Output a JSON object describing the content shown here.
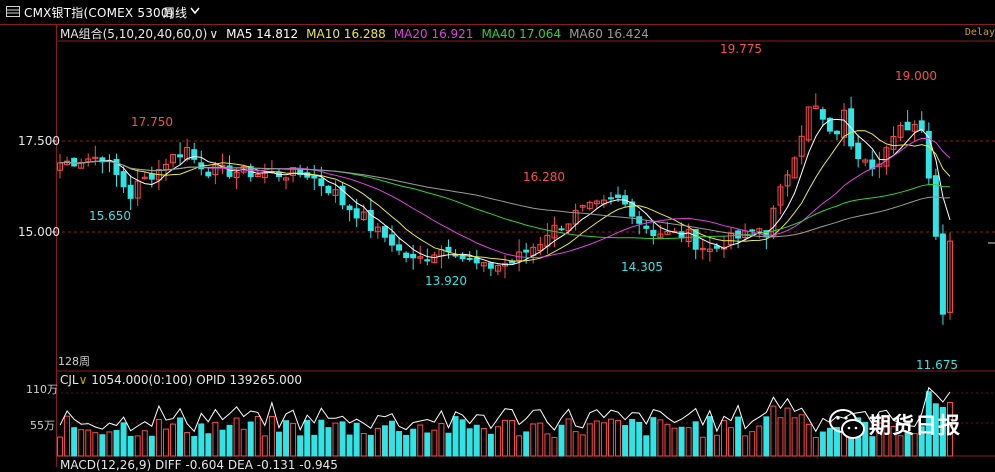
{
  "titlebar": {
    "instrument": "CMX银T指(COMEX 5300)",
    "period": "周线"
  },
  "indicators": {
    "ma_group_label": "MA组合(5,10,20,40,60,0)",
    "ma5": "MA5 14.812",
    "ma10": "MA10 16.288",
    "ma20": "MA20 16.921",
    "ma40": "MA40 17.064",
    "ma60": "MA60 16.424",
    "delay": "Delay"
  },
  "colors": {
    "up": "#ff4a4a",
    "down": "#2ee4e4",
    "ma5": "#ffffff",
    "ma10": "#e8e840",
    "ma20": "#e040e0",
    "ma40": "#30d030",
    "ma60": "#9a9a9a"
  },
  "axis": {
    "y_labels": [
      "17.500",
      "15.000"
    ],
    "periods_label": "128周",
    "vol_labels": [
      "110万",
      "55万"
    ]
  },
  "annotations": {
    "high1": "17.750",
    "low1": "15.650",
    "low2": "13.920",
    "high2": "16.280",
    "low3": "14.305",
    "high3": "19.775",
    "high4": "19.000",
    "low4": "11.675"
  },
  "volume_panel": {
    "label": "CJL",
    "values": "1054.000(0:100)",
    "opid": "OPID 139265.000"
  },
  "macd_panel": {
    "label": "MACD(12,26,9)",
    "diff": "DIFF -0.604",
    "dea": "DEA -0.131",
    "macd": "-0.945"
  },
  "watermark": {
    "text": "期货日报"
  },
  "chart_data": {
    "type": "candlestick",
    "bars": 127,
    "y_ticks": [
      17.5,
      15.0
    ],
    "swing_points": [
      {
        "label": "17.750",
        "kind": "high"
      },
      {
        "label": "15.650",
        "kind": "low"
      },
      {
        "label": "13.920",
        "kind": "low"
      },
      {
        "label": "16.280",
        "kind": "high"
      },
      {
        "label": "14.305",
        "kind": "low"
      },
      {
        "label": "19.775",
        "kind": "high"
      },
      {
        "label": "19.000",
        "kind": "high"
      },
      {
        "label": "11.675",
        "kind": "low"
      }
    ],
    "latest": {
      "ma5": 14.812,
      "ma10": 16.288,
      "ma20": 16.921,
      "ma40": 17.064,
      "ma60": 16.424
    }
  }
}
